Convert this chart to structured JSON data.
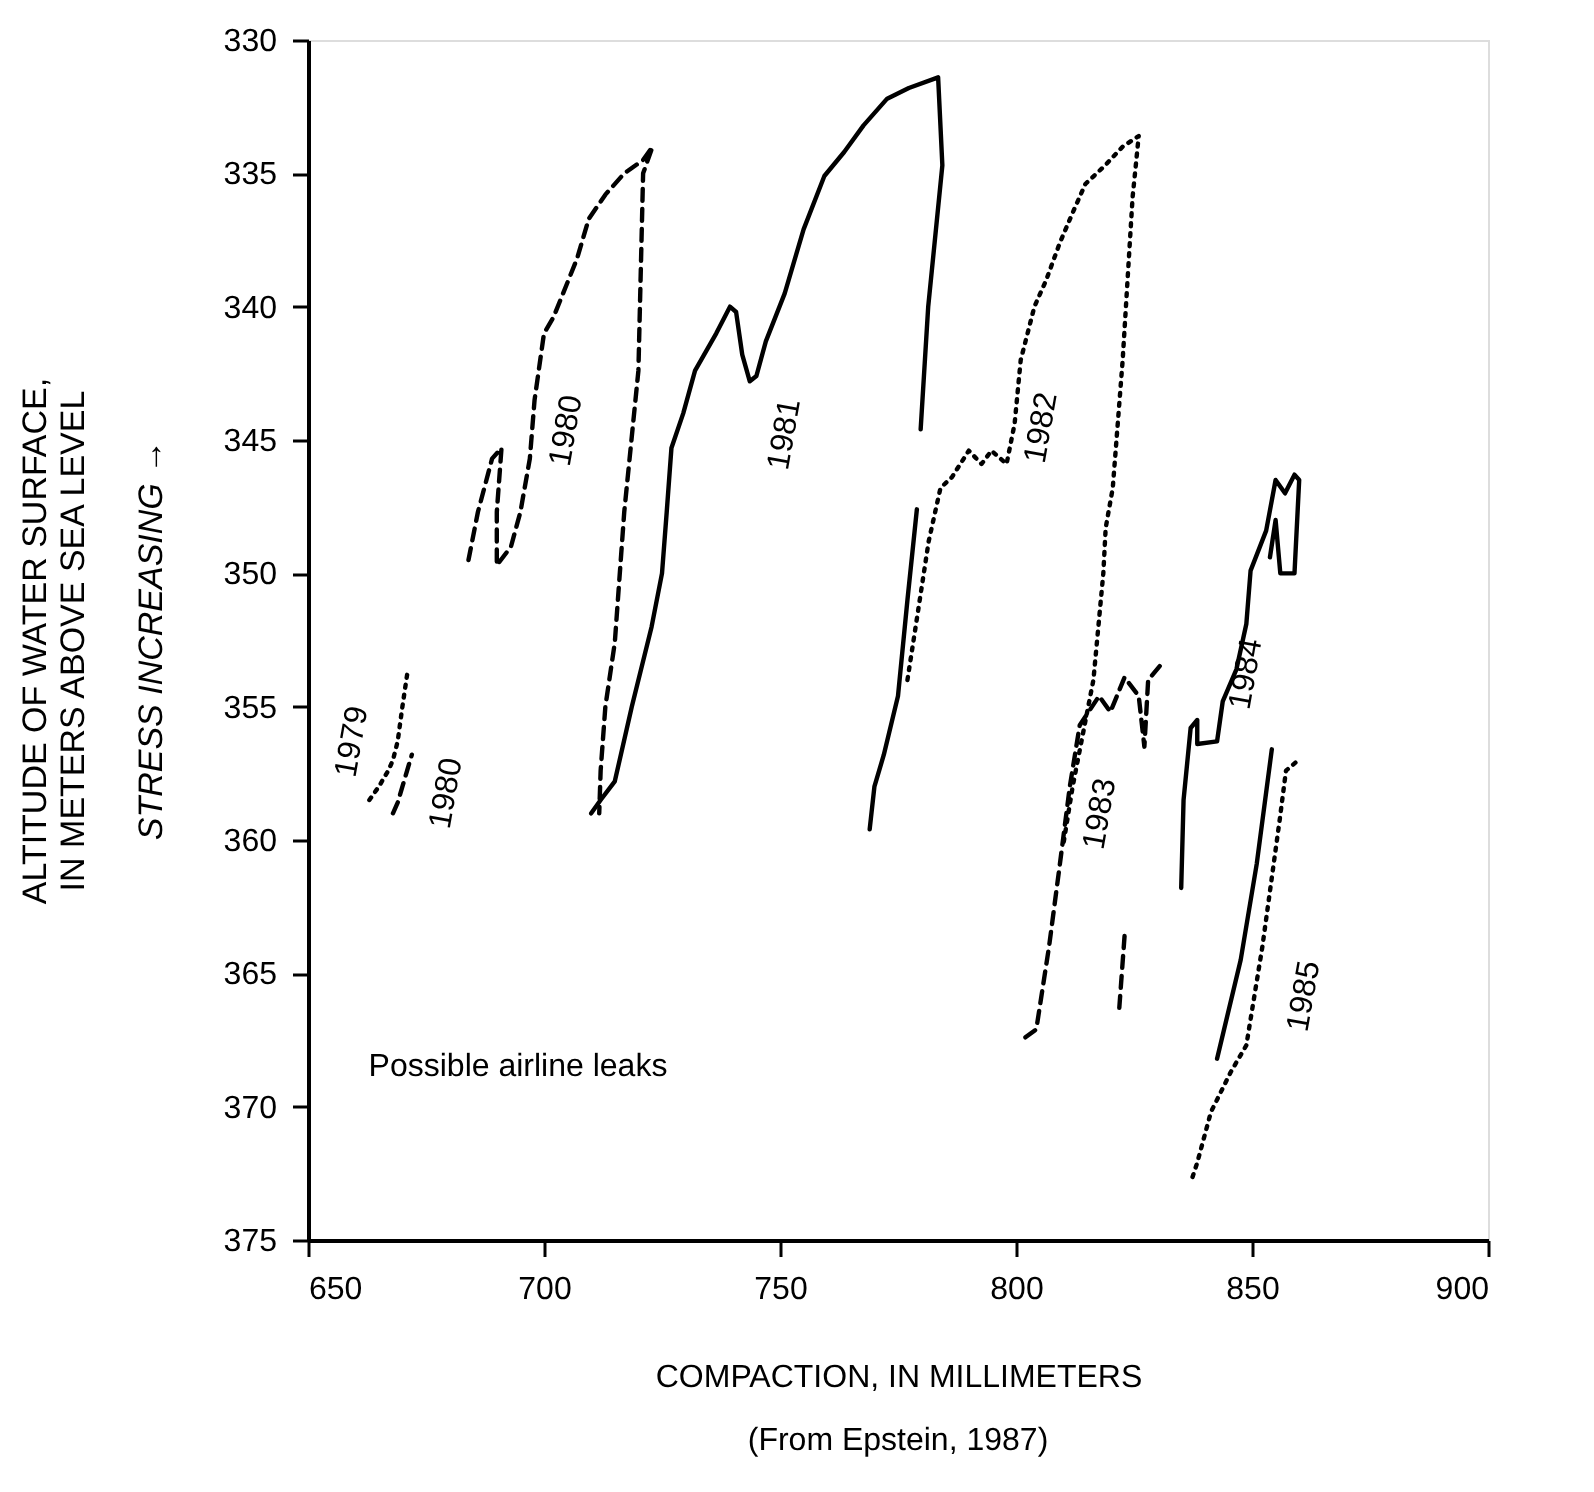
{
  "chart_data": {
    "type": "line",
    "xlabel": "COMPACTION, IN MILLIMETERS",
    "ylabel": "ALTITUDE OF WATER SURFACE,\nIN METERS ABOVE SEA LEVEL",
    "xlim": [
      650,
      900
    ],
    "ylim": [
      375,
      330
    ],
    "xticks": [
      650,
      700,
      750,
      800,
      850,
      900
    ],
    "yticks": [
      330,
      335,
      340,
      345,
      350,
      355,
      360,
      365,
      370,
      375
    ],
    "grid": false,
    "annotations": [
      "STRESS INCREASING →",
      "Possible airline leaks",
      "(From Epstein, 1987)"
    ],
    "series": [
      {
        "name": "1979",
        "color": "#000000",
        "line_style": "dotted",
        "x": [
          663,
          665,
          667,
          668,
          669,
          670,
          671
        ],
        "values": [
          358.5,
          358,
          357.4,
          357,
          356.3,
          355,
          353.8
        ]
      },
      {
        "name": "1980",
        "color": "#000000",
        "line_style": "dashed",
        "x": [
          668,
          669,
          670,
          671,
          672
        ],
        "values": [
          359,
          358.6,
          358,
          357.4,
          356.8
        ]
      },
      {
        "name": "1980",
        "color": "#000000",
        "line_style": "dashed",
        "x": [
          684,
          686,
          689,
          691,
          690,
          690,
          693,
          695,
          697,
          698,
          700,
          702,
          707,
          709.5,
          713,
          717,
          721,
          723,
          721,
          720,
          717,
          715,
          713,
          712,
          711.7
        ],
        "values": [
          349.5,
          347.7,
          345.7,
          345.3,
          347.7,
          349.7,
          349,
          347.7,
          345.7,
          343.5,
          341,
          340.4,
          338.2,
          336.7,
          335.8,
          335,
          334.5,
          334,
          335,
          342.4,
          347.7,
          352.6,
          355,
          357.4,
          359
        ]
      },
      {
        "name": "1981",
        "color": "#000000",
        "line_style": "solid",
        "x": [
          710,
          712,
          715,
          718.6,
          722.8,
          725,
          726,
          727,
          729.5,
          732,
          736.5,
          739.4,
          740.7,
          742,
          743.6,
          745,
          747,
          751,
          755,
          759.4,
          763.6,
          767.7,
          772.7,
          777.3,
          783.5,
          784.4,
          781.4,
          779.8,
          null,
          769,
          770,
          772,
          775,
          777,
          779
        ],
        "values": [
          359,
          358.5,
          357.8,
          355,
          352,
          350,
          347.7,
          345.3,
          344,
          342.4,
          341,
          340,
          340.2,
          341.8,
          342.8,
          342.6,
          341.3,
          339.5,
          337.1,
          335.1,
          334.2,
          333.2,
          332.2,
          331.8,
          331.4,
          334.7,
          340,
          344.6,
          null,
          359.6,
          358,
          356.8,
          354.6,
          351,
          347.6
        ]
      },
      {
        "name": "1982",
        "color": "#000000",
        "line_style": "dotted",
        "x": [
          777,
          779,
          781.5,
          784,
          786.4,
          790,
          792.7,
          794.8,
          798,
          799.7,
          801,
          803.9,
          806.4,
          809.3,
          812.2,
          814.7,
          818.9,
          822.6,
          826,
          824.7,
          822.6,
          820.5,
          819,
          818.5,
          816.4,
          812,
          810
        ],
        "values": [
          354,
          351.7,
          348.8,
          346.8,
          346.4,
          345.4,
          345.9,
          345.4,
          345.9,
          344.4,
          342,
          340,
          339,
          337.6,
          336.4,
          335.4,
          334.7,
          334,
          333.6,
          335.9,
          342,
          346.8,
          348.3,
          350,
          354,
          358,
          360.2
        ]
      },
      {
        "name": "1983",
        "color": "#000000",
        "line_style": "dashed",
        "x": [
          802,
          804.3,
          807,
          809.3,
          811.4,
          813.5,
          817.6,
          820,
          823,
          826,
          827.2,
          828,
          831.3,
          null,
          823,
          821.8
        ],
        "values": [
          367.4,
          367.1,
          364,
          360.9,
          358,
          355.7,
          354.6,
          355.2,
          353.9,
          354.6,
          356.5,
          354,
          353.3,
          null,
          363.6,
          366.5
        ]
      },
      {
        "name": "1984",
        "color": "#000000",
        "line_style": "solid",
        "x": [
          835,
          835.5,
          837,
          838.4,
          838.4,
          842.6,
          843.8,
          846.7,
          848.8,
          849.7,
          853,
          855,
          857,
          859,
          860,
          859,
          856,
          855,
          853.8,
          null,
          854.2,
          851,
          847.6,
          842.6
        ],
        "values": [
          361.8,
          358.5,
          355.8,
          355.5,
          356.4,
          356.3,
          354.8,
          353.6,
          351.9,
          349.9,
          348.4,
          346.5,
          347,
          346.3,
          346.5,
          350,
          350,
          348,
          349.4,
          null,
          356.6,
          360.9,
          364.5,
          368.2
        ]
      },
      {
        "name": "1985",
        "color": "#000000",
        "line_style": "dotted",
        "x": [
          859.2,
          857.2,
          855.9,
          852.2,
          848.8,
          845.5,
          841.3,
          838.4,
          837.1
        ],
        "values": [
          357.1,
          357.4,
          359.2,
          364,
          367.7,
          368.7,
          370.2,
          372.1,
          372.8
        ]
      }
    ]
  }
}
